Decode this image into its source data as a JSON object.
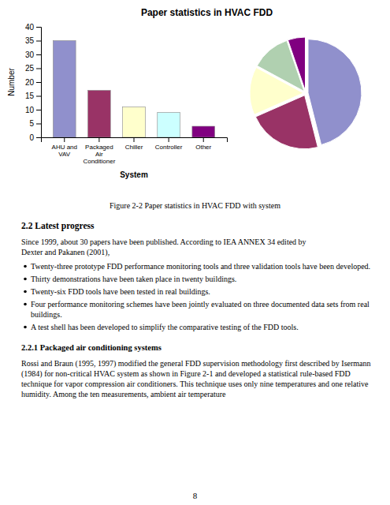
{
  "chart_data": [
    {
      "type": "bar",
      "title": "Paper statistics in HVAC FDD",
      "categories": [
        "AHU and\nVAV",
        "Packaged\nAir\nConditioner",
        "Chiller",
        "Controller",
        "Other"
      ],
      "values": [
        35,
        17,
        11,
        9,
        4
      ],
      "colors": [
        "#9090cc",
        "#993366",
        "#ffffcc",
        "#ccffff",
        "#800080"
      ],
      "ylabel": "Number",
      "xlabel": "System",
      "ylim": [
        0,
        40
      ],
      "yticks": [
        0,
        5,
        10,
        15,
        20,
        25,
        30,
        35,
        40
      ]
    },
    {
      "type": "pie",
      "values": [
        35,
        17,
        11,
        9,
        4
      ],
      "colors": [
        "#9090cc",
        "#993366",
        "#ffffcc",
        "#b0d0b0",
        "#800080"
      ]
    }
  ],
  "page": {
    "caption": "Figure 2-2 Paper statistics in HVAC FDD with system",
    "section_title": "2.2   Latest progress",
    "body_text": "Since 1999, about 30 papers have been published. According to IEA ANNEX 34 edited by\nDexter and Pakanen (2001),",
    "bullets": [
      "Twenty-three prototype FDD performance monitoring tools and three validation tools have been developed.",
      "Thirty demonstrations have been taken place in twenty buildings.",
      "Twenty-six FDD tools have been tested in real buildings.",
      "Four performance monitoring schemes have been jointly evaluated on three documented data sets from real buildings.",
      "A test shell has been developed to simplify the comparative testing of the FDD tools."
    ],
    "subsection_title": "2.2.1    Packaged air conditioning systems",
    "body_text2": "Rossi and Braun (1995, 1997) modified the general FDD supervision methodology first described by Isermann (1984) for non-critical HVAC system as shown in Figure 2-1 and developed a statistical rule-based FDD technique for vapor compression air conditioners. This technique uses only nine temperatures and one relative humidity. Among the ten measurements, ambient air temperature",
    "page_number": "8"
  }
}
